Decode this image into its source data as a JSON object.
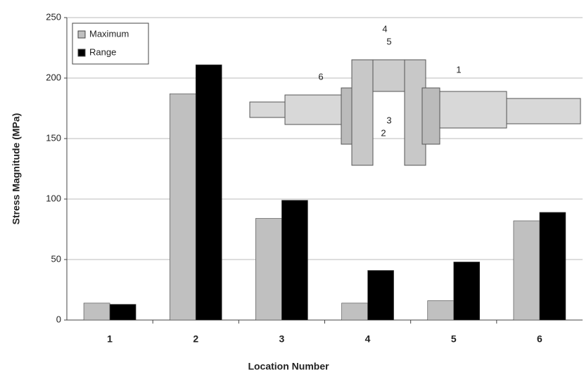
{
  "chart_data": {
    "type": "bar",
    "xlabel": "Location Number",
    "ylabel": "Stress Magnitude (MPa)",
    "categories": [
      "1",
      "2",
      "3",
      "4",
      "5",
      "6"
    ],
    "series": [
      {
        "name": "Maximum",
        "color": "#c0c0c0",
        "values": [
          14,
          187,
          84,
          14,
          16,
          82
        ]
      },
      {
        "name": "Range",
        "color": "#000000",
        "values": [
          13,
          211,
          99,
          41,
          48,
          89
        ]
      }
    ],
    "ylim": [
      0,
      250
    ],
    "yticks": [
      0,
      50,
      100,
      150,
      200,
      250
    ],
    "grid": true,
    "legend": "upper left",
    "annotations": [
      "4",
      "5",
      "6",
      "1",
      "3",
      "2"
    ]
  }
}
